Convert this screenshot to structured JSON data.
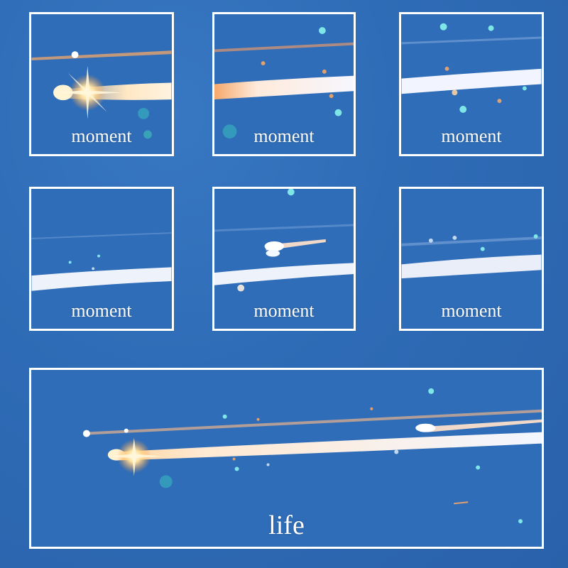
{
  "panels": [
    {
      "caption": "moment"
    },
    {
      "caption": "moment"
    },
    {
      "caption": "moment"
    },
    {
      "caption": "moment"
    },
    {
      "caption": "moment"
    },
    {
      "caption": "moment"
    },
    {
      "caption": "life"
    }
  ],
  "colors": {
    "sky": "#2d6bb7",
    "frame": "#ffffff",
    "trail": "#f3f6ff",
    "flare": "#ffd27a"
  }
}
